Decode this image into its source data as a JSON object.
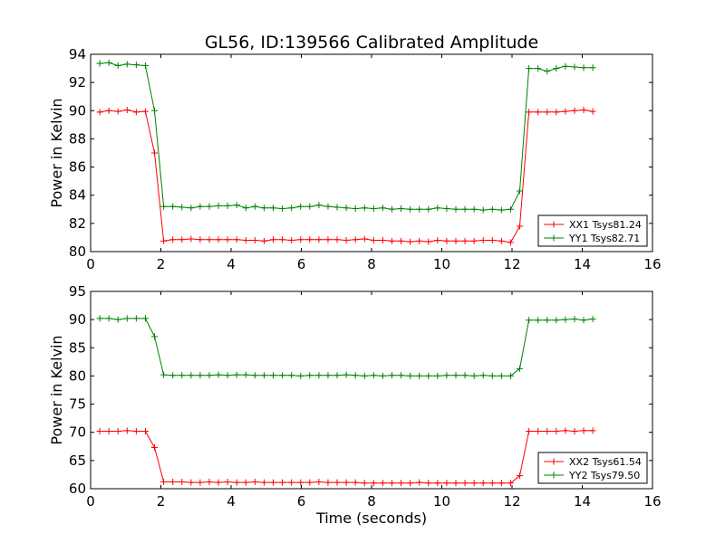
{
  "figure": {
    "title": "GL56, ID:139566 Calibrated Amplitude",
    "xlabel": "Time (seconds)"
  },
  "chart_data": [
    {
      "type": "line",
      "title": "GL56, ID:139566 Calibrated Amplitude",
      "xlabel": "",
      "ylabel": "Power in Kelvin",
      "xlim": [
        0,
        16
      ],
      "ylim": [
        80,
        94
      ],
      "xticks": [
        0,
        2,
        4,
        6,
        8,
        10,
        12,
        14,
        16
      ],
      "yticks": [
        80,
        82,
        84,
        86,
        88,
        90,
        92,
        94
      ],
      "legend_position": "lower-right",
      "series": [
        {
          "name": "XX1 Tsys81.24",
          "color": "#ff0000",
          "x": [
            0.26,
            0.52,
            0.78,
            1.04,
            1.3,
            1.56,
            1.82,
            2.08,
            2.34,
            2.6,
            2.86,
            3.12,
            3.38,
            3.64,
            3.9,
            4.16,
            4.42,
            4.68,
            4.94,
            5.2,
            5.46,
            5.72,
            5.98,
            6.24,
            6.5,
            6.76,
            7.02,
            7.28,
            7.54,
            7.8,
            8.06,
            8.32,
            8.58,
            8.84,
            9.1,
            9.36,
            9.62,
            9.88,
            10.14,
            10.4,
            10.66,
            10.92,
            11.18,
            11.44,
            11.7,
            11.96,
            12.22,
            12.48,
            12.74,
            13.0,
            13.26,
            13.52,
            13.78,
            14.04,
            14.3
          ],
          "y": [
            89.9,
            90.0,
            89.95,
            90.05,
            89.9,
            89.95,
            87.0,
            80.75,
            80.85,
            80.85,
            80.9,
            80.85,
            80.85,
            80.85,
            80.85,
            80.85,
            80.8,
            80.8,
            80.75,
            80.85,
            80.85,
            80.8,
            80.85,
            80.85,
            80.85,
            80.85,
            80.85,
            80.8,
            80.85,
            80.9,
            80.8,
            80.8,
            80.75,
            80.75,
            80.7,
            80.75,
            80.7,
            80.8,
            80.75,
            80.75,
            80.75,
            80.75,
            80.8,
            80.8,
            80.75,
            80.65,
            81.8,
            89.9,
            89.9,
            89.9,
            89.9,
            89.95,
            90.0,
            90.05,
            89.95
          ]
        },
        {
          "name": "YY1 Tsys82.71",
          "color": "#008000",
          "x": [
            0.26,
            0.52,
            0.78,
            1.04,
            1.3,
            1.56,
            1.82,
            2.08,
            2.34,
            2.6,
            2.86,
            3.12,
            3.38,
            3.64,
            3.9,
            4.16,
            4.42,
            4.68,
            4.94,
            5.2,
            5.46,
            5.72,
            5.98,
            6.24,
            6.5,
            6.76,
            7.02,
            7.28,
            7.54,
            7.8,
            8.06,
            8.32,
            8.58,
            8.84,
            9.1,
            9.36,
            9.62,
            9.88,
            10.14,
            10.4,
            10.66,
            10.92,
            11.18,
            11.44,
            11.7,
            11.96,
            12.22,
            12.48,
            12.74,
            13.0,
            13.26,
            13.52,
            13.78,
            14.04,
            14.3
          ],
          "y": [
            93.35,
            93.4,
            93.2,
            93.3,
            93.25,
            93.2,
            90.0,
            83.2,
            83.2,
            83.15,
            83.1,
            83.2,
            83.2,
            83.25,
            83.25,
            83.3,
            83.1,
            83.2,
            83.1,
            83.1,
            83.05,
            83.1,
            83.2,
            83.2,
            83.3,
            83.2,
            83.15,
            83.1,
            83.05,
            83.1,
            83.05,
            83.1,
            83.0,
            83.05,
            83.0,
            83.0,
            83.0,
            83.1,
            83.05,
            83.0,
            83.0,
            83.0,
            82.95,
            83.0,
            82.95,
            83.0,
            84.3,
            93.0,
            93.0,
            92.8,
            93.0,
            93.15,
            93.1,
            93.05,
            93.05
          ]
        }
      ]
    },
    {
      "type": "line",
      "title": "",
      "xlabel": "Time (seconds)",
      "ylabel": "Power in Kelvin",
      "xlim": [
        0,
        16
      ],
      "ylim": [
        60,
        95
      ],
      "xticks": [
        0,
        2,
        4,
        6,
        8,
        10,
        12,
        14,
        16
      ],
      "yticks": [
        60,
        65,
        70,
        75,
        80,
        85,
        90,
        95
      ],
      "legend_position": "lower-right",
      "series": [
        {
          "name": "XX2 Tsys61.54",
          "color": "#ff0000",
          "x": [
            0.26,
            0.52,
            0.78,
            1.04,
            1.3,
            1.56,
            1.82,
            2.08,
            2.34,
            2.6,
            2.86,
            3.12,
            3.38,
            3.64,
            3.9,
            4.16,
            4.42,
            4.68,
            4.94,
            5.2,
            5.46,
            5.72,
            5.98,
            6.24,
            6.5,
            6.76,
            7.02,
            7.28,
            7.54,
            7.8,
            8.06,
            8.32,
            8.58,
            8.84,
            9.1,
            9.36,
            9.62,
            9.88,
            10.14,
            10.4,
            10.66,
            10.92,
            11.18,
            11.44,
            11.7,
            11.96,
            12.22,
            12.48,
            12.74,
            13.0,
            13.26,
            13.52,
            13.78,
            14.04,
            14.3
          ],
          "y": [
            70.2,
            70.2,
            70.2,
            70.3,
            70.2,
            70.2,
            67.3,
            61.2,
            61.2,
            61.2,
            61.1,
            61.1,
            61.2,
            61.1,
            61.2,
            61.1,
            61.1,
            61.2,
            61.1,
            61.1,
            61.1,
            61.1,
            61.1,
            61.1,
            61.2,
            61.1,
            61.1,
            61.1,
            61.1,
            61.0,
            61.0,
            61.0,
            61.0,
            61.0,
            61.0,
            61.1,
            61.0,
            61.0,
            61.0,
            61.0,
            61.0,
            61.0,
            61.0,
            61.0,
            61.0,
            61.0,
            62.3,
            70.2,
            70.2,
            70.2,
            70.2,
            70.3,
            70.2,
            70.3,
            70.3
          ]
        },
        {
          "name": "YY2 Tsys79.50",
          "color": "#008000",
          "x": [
            0.26,
            0.52,
            0.78,
            1.04,
            1.3,
            1.56,
            1.82,
            2.08,
            2.34,
            2.6,
            2.86,
            3.12,
            3.38,
            3.64,
            3.9,
            4.16,
            4.42,
            4.68,
            4.94,
            5.2,
            5.46,
            5.72,
            5.98,
            6.24,
            6.5,
            6.76,
            7.02,
            7.28,
            7.54,
            7.8,
            8.06,
            8.32,
            8.58,
            8.84,
            9.1,
            9.36,
            9.62,
            9.88,
            10.14,
            10.4,
            10.66,
            10.92,
            11.18,
            11.44,
            11.7,
            11.96,
            12.22,
            12.48,
            12.74,
            13.0,
            13.26,
            13.52,
            13.78,
            14.04,
            14.3
          ],
          "y": [
            90.2,
            90.2,
            90.0,
            90.2,
            90.2,
            90.2,
            87.0,
            80.2,
            80.1,
            80.1,
            80.1,
            80.1,
            80.1,
            80.2,
            80.1,
            80.2,
            80.2,
            80.1,
            80.1,
            80.1,
            80.1,
            80.1,
            80.0,
            80.1,
            80.1,
            80.1,
            80.1,
            80.2,
            80.1,
            80.0,
            80.1,
            80.0,
            80.1,
            80.1,
            80.0,
            80.0,
            80.0,
            80.0,
            80.1,
            80.1,
            80.1,
            80.0,
            80.1,
            80.0,
            80.0,
            80.0,
            81.3,
            89.9,
            89.9,
            89.9,
            89.9,
            90.0,
            90.1,
            89.9,
            90.1
          ]
        }
      ]
    }
  ]
}
